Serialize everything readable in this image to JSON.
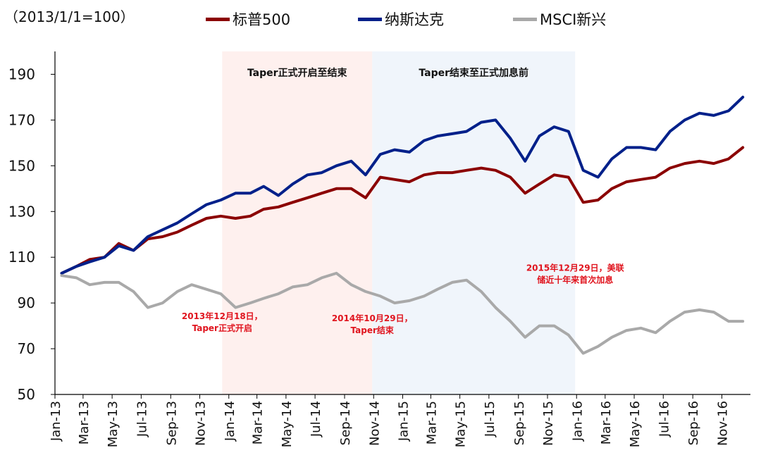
{
  "chart_data": {
    "type": "line",
    "unit_label": "（2013/1/1=100）",
    "ylim": [
      50,
      200
    ],
    "yticks": [
      50,
      70,
      90,
      110,
      130,
      150,
      170,
      190
    ],
    "xticks": [
      "Jan-13",
      "Mar-13",
      "May-13",
      "Jul-13",
      "Sep-13",
      "Nov-13",
      "Jan-14",
      "Mar-14",
      "May-14",
      "Jul-14",
      "Sep-14",
      "Nov-14",
      "Jan-15",
      "Mar-15",
      "May-15",
      "Jul-15",
      "Sep-15",
      "Nov-15",
      "Jan-16",
      "Mar-16",
      "May-16",
      "Jul-16",
      "Sep-16",
      "Nov-16"
    ],
    "x_dates": [
      "2013-01",
      "2013-02",
      "2013-03",
      "2013-04",
      "2013-05",
      "2013-06",
      "2013-07",
      "2013-08",
      "2013-09",
      "2013-10",
      "2013-11",
      "2013-12",
      "2014-01",
      "2014-02",
      "2014-03",
      "2014-04",
      "2014-05",
      "2014-06",
      "2014-07",
      "2014-08",
      "2014-09",
      "2014-10",
      "2014-11",
      "2014-12",
      "2015-01",
      "2015-02",
      "2015-03",
      "2015-04",
      "2015-05",
      "2015-06",
      "2015-07",
      "2015-08",
      "2015-09",
      "2015-10",
      "2015-11",
      "2015-12",
      "2016-01",
      "2016-02",
      "2016-03",
      "2016-04",
      "2016-05",
      "2016-06",
      "2016-07",
      "2016-08",
      "2016-09",
      "2016-10",
      "2016-11",
      "2016-12"
    ],
    "series": [
      {
        "name": "标普500",
        "color": "#8b0000",
        "values": [
          103,
          106,
          109,
          110,
          116,
          113,
          118,
          119,
          121,
          124,
          127,
          128,
          127,
          128,
          131,
          132,
          134,
          136,
          138,
          140,
          140,
          136,
          145,
          144,
          143,
          146,
          147,
          147,
          148,
          149,
          148,
          145,
          138,
          142,
          146,
          145,
          134,
          135,
          140,
          143,
          144,
          145,
          149,
          151,
          152,
          151,
          153,
          158
        ]
      },
      {
        "name": "纳斯达克",
        "color": "#00208a",
        "values": [
          103,
          106,
          108,
          110,
          115,
          113,
          119,
          122,
          125,
          129,
          133,
          135,
          138,
          138,
          141,
          137,
          142,
          146,
          147,
          150,
          152,
          146,
          155,
          157,
          156,
          161,
          163,
          164,
          165,
          169,
          170,
          162,
          152,
          163,
          167,
          165,
          148,
          145,
          153,
          158,
          158,
          157,
          165,
          170,
          173,
          172,
          174,
          180
        ]
      },
      {
        "name": "MSCI新兴",
        "color": "#a9a9a9",
        "values": [
          102,
          101,
          98,
          99,
          99,
          95,
          88,
          90,
          95,
          98,
          96,
          94,
          88,
          90,
          92,
          94,
          97,
          98,
          101,
          103,
          98,
          95,
          93,
          90,
          91,
          93,
          96,
          99,
          100,
          95,
          88,
          82,
          75,
          80,
          80,
          76,
          68,
          71,
          75,
          78,
          79,
          77,
          82,
          86,
          87,
          86,
          82,
          82
        ]
      }
    ],
    "shaded_regions": [
      {
        "label": "Taper正式开启至结束",
        "start": "2013-12-18",
        "end": "2014-10-29",
        "color": "#fde4e0"
      },
      {
        "label": "Taper结束至正式加息前",
        "start": "2014-10-29",
        "end": "2015-12-29",
        "color": "#e4ecf8"
      }
    ],
    "annotations": [
      {
        "text": [
          "2013年12月18日，",
          "Taper正式开启"
        ],
        "date": "2013-12-18",
        "y": 83
      },
      {
        "text": [
          "2014年10月29日，",
          "Taper结束"
        ],
        "date": "2014-10-29",
        "y": 82
      },
      {
        "text": [
          "2015年12月29日，美联",
          "储近十年来首次加息"
        ],
        "date": "2015-12-29",
        "y": 104
      }
    ]
  }
}
